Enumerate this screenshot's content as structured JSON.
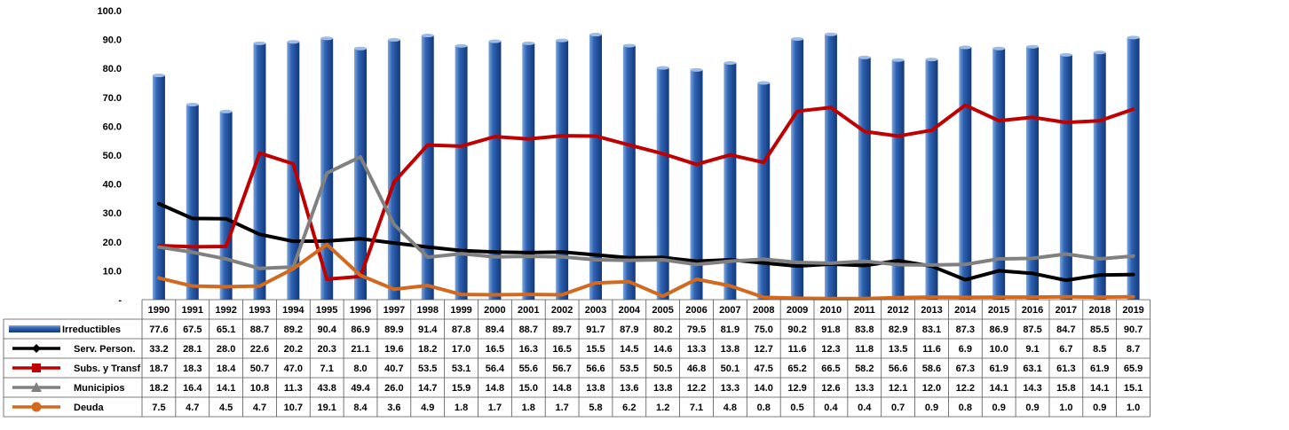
{
  "chart_data": {
    "type": "bar",
    "categories": [
      "1990",
      "1991",
      "1992",
      "1993",
      "1994",
      "1995",
      "1996",
      "1997",
      "1998",
      "1999",
      "2000",
      "2001",
      "2002",
      "2003",
      "2004",
      "2005",
      "2006",
      "2007",
      "2008",
      "2009",
      "2010",
      "2011",
      "2012",
      "2013",
      "2014",
      "2015",
      "2016",
      "2017",
      "2018",
      "2019"
    ],
    "ylim": [
      0,
      100
    ],
    "y_ticks": [
      "-",
      "10.0",
      "20.0",
      "30.0",
      "40.0",
      "50.0",
      "60.0",
      "70.0",
      "80.0",
      "90.0",
      "100.0"
    ],
    "grid": false,
    "legend_placement": "data-table",
    "series": [
      {
        "name": "Irreductibles",
        "kind": "bar",
        "color": "#2f5fa8",
        "values": [
          77.6,
          67.5,
          65.1,
          88.7,
          89.2,
          90.4,
          86.9,
          89.9,
          91.4,
          87.8,
          89.4,
          88.7,
          89.7,
          91.7,
          87.9,
          80.2,
          79.5,
          81.9,
          75.0,
          90.2,
          91.8,
          83.8,
          82.9,
          83.1,
          87.3,
          86.9,
          87.5,
          84.7,
          85.5,
          90.7
        ]
      },
      {
        "name": "Serv. Person.",
        "kind": "line",
        "marker": "diamond",
        "color": "#000000",
        "values": [
          33.2,
          28.1,
          28.0,
          22.6,
          20.2,
          20.3,
          21.1,
          19.6,
          18.2,
          17.0,
          16.5,
          16.3,
          16.5,
          15.5,
          14.5,
          14.6,
          13.3,
          13.8,
          12.7,
          11.6,
          12.3,
          11.8,
          13.5,
          11.6,
          6.9,
          10.0,
          9.1,
          6.7,
          8.5,
          8.7
        ]
      },
      {
        "name": "Subs. y Transf",
        "kind": "line",
        "marker": "square",
        "color": "#c00000",
        "values": [
          18.7,
          18.3,
          18.4,
          50.7,
          47.0,
          7.1,
          8.0,
          40.7,
          53.5,
          53.1,
          56.4,
          55.6,
          56.7,
          56.6,
          53.5,
          50.5,
          46.8,
          50.1,
          47.5,
          65.2,
          66.5,
          58.2,
          56.6,
          58.6,
          67.3,
          61.9,
          63.1,
          61.3,
          61.9,
          65.9
        ]
      },
      {
        "name": "Municipios",
        "kind": "line",
        "marker": "triangle",
        "color": "#808080",
        "values": [
          18.2,
          16.4,
          14.1,
          10.8,
          11.3,
          43.8,
          49.4,
          26.0,
          14.7,
          15.9,
          14.8,
          15.0,
          14.8,
          13.8,
          13.6,
          13.8,
          12.2,
          13.3,
          14.0,
          12.9,
          12.6,
          13.3,
          12.1,
          12.0,
          12.2,
          14.1,
          14.3,
          15.8,
          14.1,
          15.1
        ]
      },
      {
        "name": "Deuda",
        "kind": "line",
        "marker": "circle",
        "color": "#d2691e",
        "values": [
          7.5,
          4.7,
          4.5,
          4.7,
          10.7,
          19.1,
          8.4,
          3.6,
          4.9,
          1.8,
          1.7,
          1.8,
          1.7,
          5.8,
          6.2,
          1.2,
          7.1,
          4.8,
          0.8,
          0.5,
          0.4,
          0.4,
          0.7,
          0.9,
          0.8,
          0.9,
          0.9,
          1.0,
          0.9,
          1.0
        ]
      }
    ]
  }
}
